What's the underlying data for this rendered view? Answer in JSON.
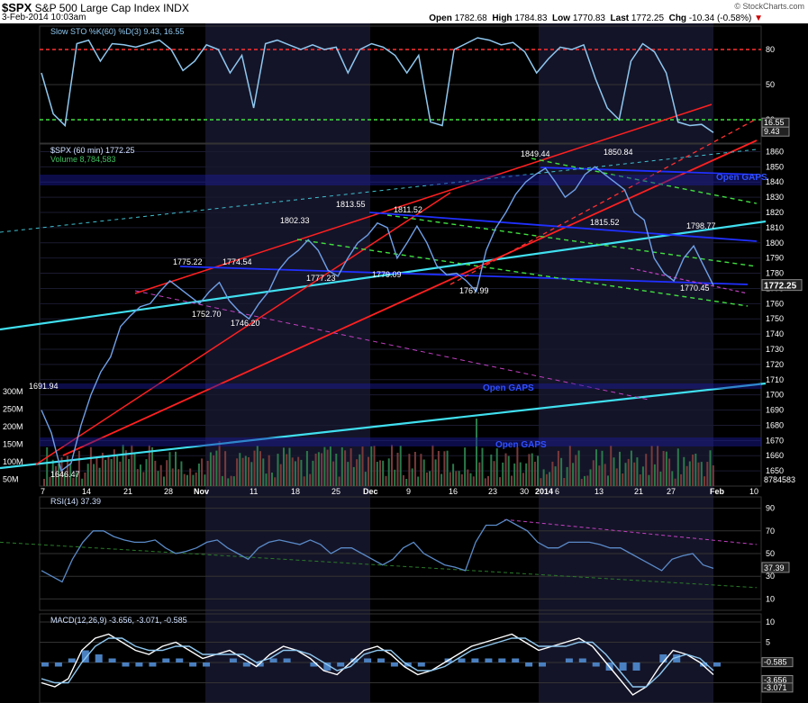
{
  "header": {
    "symbol": "$SPX",
    "name": "S&P 500 Large Cap Index",
    "exchange": "INDX",
    "datetime": "3-Feb-2014 10:03am",
    "open_label": "Open",
    "open": "1782.68",
    "high_label": "High",
    "high": "1784.83",
    "low_label": "Low",
    "low": "1770.83",
    "last_label": "Last",
    "last": "1772.25",
    "chg_label": "Chg",
    "chg": "-10.34 (-0.58%)",
    "brand": "© StockCharts.com"
  },
  "colors": {
    "background": "#000000",
    "shade": "#141428",
    "price": "#6fa0e8",
    "indicator": "#8fc8f0",
    "red_trend": "#ff2020",
    "cyan_trend": "#40e0f0",
    "blue_trend": "#2030ff",
    "green_dashed": "#40e040",
    "magenta_dashed": "#c040c0",
    "volume_up": "#2a7a4a",
    "volume_down": "#7a3a3a"
  },
  "chart_data": [
    {
      "type": "line",
      "panel": "stochastic",
      "legend": "Slow STO %K(60) %D(3) 9.43, 16.55",
      "y_ticks": [
        80,
        50,
        20
      ],
      "ylim": [
        0,
        100
      ],
      "overbought": 80,
      "oversold": 20,
      "value_labels": [
        "16.55",
        "9.43"
      ],
      "series": [
        {
          "name": "%K",
          "values": [
            60,
            25,
            15,
            85,
            88,
            70,
            85,
            84,
            82,
            85,
            88,
            80,
            62,
            70,
            84,
            80,
            60,
            75,
            30,
            85,
            88,
            84,
            80,
            84,
            80,
            82,
            60,
            80,
            85,
            82,
            75,
            60,
            75,
            18,
            15,
            80,
            85,
            90,
            88,
            84,
            86,
            78,
            60,
            72,
            82,
            80,
            84,
            55,
            30,
            20,
            70,
            85,
            78,
            60,
            18,
            15,
            16,
            9
          ]
        }
      ]
    },
    {
      "type": "line",
      "panel": "price",
      "legend_price": "$SPX (60 min) 1772.25",
      "legend_volume": "Volume 8,784,583",
      "ylim": [
        1640,
        1865
      ],
      "y_ticks": [
        1650,
        1660,
        1670,
        1680,
        1690,
        1700,
        1710,
        1720,
        1730,
        1740,
        1750,
        1760,
        1770,
        1780,
        1790,
        1800,
        1810,
        1820,
        1830,
        1840,
        1850,
        1860
      ],
      "last_label": "1772.25",
      "x_ticks": [
        "7",
        "14",
        "21",
        "28",
        "Nov",
        "11",
        "18",
        "25",
        "Dec",
        "9",
        "16",
        "23",
        "30",
        "2014",
        "6",
        "13",
        "21",
        "27",
        "Feb",
        "10"
      ],
      "volume_ticks": [
        "300M",
        "250M",
        "200M",
        "150M",
        "100M",
        "50M"
      ],
      "volume_last": "8784583",
      "annotations": [
        "1691.94",
        "1646.47",
        "1775.22",
        "1774.54",
        "1752.70",
        "1746.20",
        "1802.33",
        "1777.23",
        "1813.55",
        "1811.52",
        "1779.09",
        "1767.99",
        "1849.44",
        "1850.84",
        "1815.52",
        "1798.77",
        "1770.45",
        "Open GAPS",
        "Open GAPS",
        "Open GAPS"
      ],
      "series": [
        {
          "name": "$SPX",
          "values": [
            1690,
            1675,
            1650,
            1655,
            1680,
            1700,
            1715,
            1725,
            1745,
            1752,
            1758,
            1760,
            1768,
            1775,
            1770,
            1765,
            1760,
            1768,
            1774,
            1762,
            1755,
            1750,
            1760,
            1768,
            1782,
            1790,
            1795,
            1802,
            1795,
            1782,
            1778,
            1790,
            1800,
            1805,
            1813,
            1810,
            1790,
            1800,
            1811,
            1800,
            1785,
            1779,
            1780,
            1775,
            1768,
            1795,
            1810,
            1820,
            1832,
            1840,
            1845,
            1849,
            1840,
            1830,
            1835,
            1845,
            1850,
            1845,
            1840,
            1835,
            1820,
            1815,
            1790,
            1780,
            1775,
            1790,
            1798,
            1785,
            1772
          ]
        }
      ]
    },
    {
      "type": "line",
      "panel": "rsi",
      "legend": "RSI(14) 37.39",
      "y_ticks": [
        90,
        70,
        50,
        30,
        10
      ],
      "ylim": [
        0,
        100
      ],
      "value_labels": [
        "37.39"
      ],
      "series": [
        {
          "name": "RSI",
          "values": [
            35,
            30,
            25,
            45,
            60,
            70,
            70,
            65,
            62,
            60,
            60,
            62,
            55,
            50,
            52,
            55,
            60,
            62,
            55,
            50,
            45,
            55,
            60,
            62,
            60,
            58,
            62,
            58,
            50,
            55,
            55,
            50,
            45,
            40,
            45,
            55,
            60,
            50,
            45,
            40,
            38,
            35,
            60,
            75,
            75,
            80,
            75,
            70,
            60,
            55,
            55,
            60,
            60,
            60,
            58,
            55,
            55,
            50,
            45,
            40,
            35,
            45,
            48,
            50,
            40,
            37
          ]
        }
      ]
    },
    {
      "type": "line",
      "panel": "macd",
      "legend": "MACD(12,26,9) -3.656, -3.071, -0.585",
      "y_ticks": [
        10,
        5,
        0,
        -5
      ],
      "ylim": [
        -10,
        12
      ],
      "value_labels": [
        "-0.585",
        "-3.656",
        "-3.071"
      ],
      "series": [
        {
          "name": "MACD",
          "values": [
            -5,
            -6,
            -4,
            3,
            6,
            7,
            5,
            3,
            2,
            4,
            5,
            3,
            1,
            2,
            3,
            1,
            -1,
            2,
            4,
            3,
            1,
            -2,
            -3,
            0,
            3,
            4,
            2,
            -1,
            -3,
            -2,
            0,
            2,
            4,
            5,
            6,
            7,
            5,
            3,
            4,
            5,
            6,
            4,
            0,
            -4,
            -8,
            -6,
            -1,
            3,
            2,
            0,
            -3
          ]
        },
        {
          "name": "Signal",
          "values": [
            -4,
            -5,
            -5,
            0,
            4,
            6,
            6,
            4,
            3,
            3,
            4,
            4,
            2,
            2,
            2,
            2,
            0,
            1,
            3,
            3,
            2,
            0,
            -2,
            -1,
            2,
            3,
            3,
            0,
            -2,
            -2,
            -1,
            1,
            3,
            4,
            5,
            6,
            6,
            4,
            4,
            4,
            5,
            5,
            2,
            -2,
            -6,
            -6,
            -3,
            1,
            2,
            1,
            -2
          ]
        },
        {
          "name": "Histogram",
          "values": [
            -1,
            -1,
            1,
            3,
            2,
            1,
            -1,
            -1,
            -1,
            1,
            1,
            -1,
            -1,
            0,
            1,
            -1,
            -1,
            1,
            1,
            0,
            -1,
            -2,
            -1,
            1,
            1,
            1,
            -1,
            -1,
            -1,
            0,
            1,
            1,
            1,
            1,
            1,
            1,
            -1,
            -1,
            0,
            1,
            1,
            -1,
            -2,
            -2,
            -2,
            0,
            2,
            2,
            0,
            -1,
            -1
          ]
        }
      ]
    }
  ]
}
